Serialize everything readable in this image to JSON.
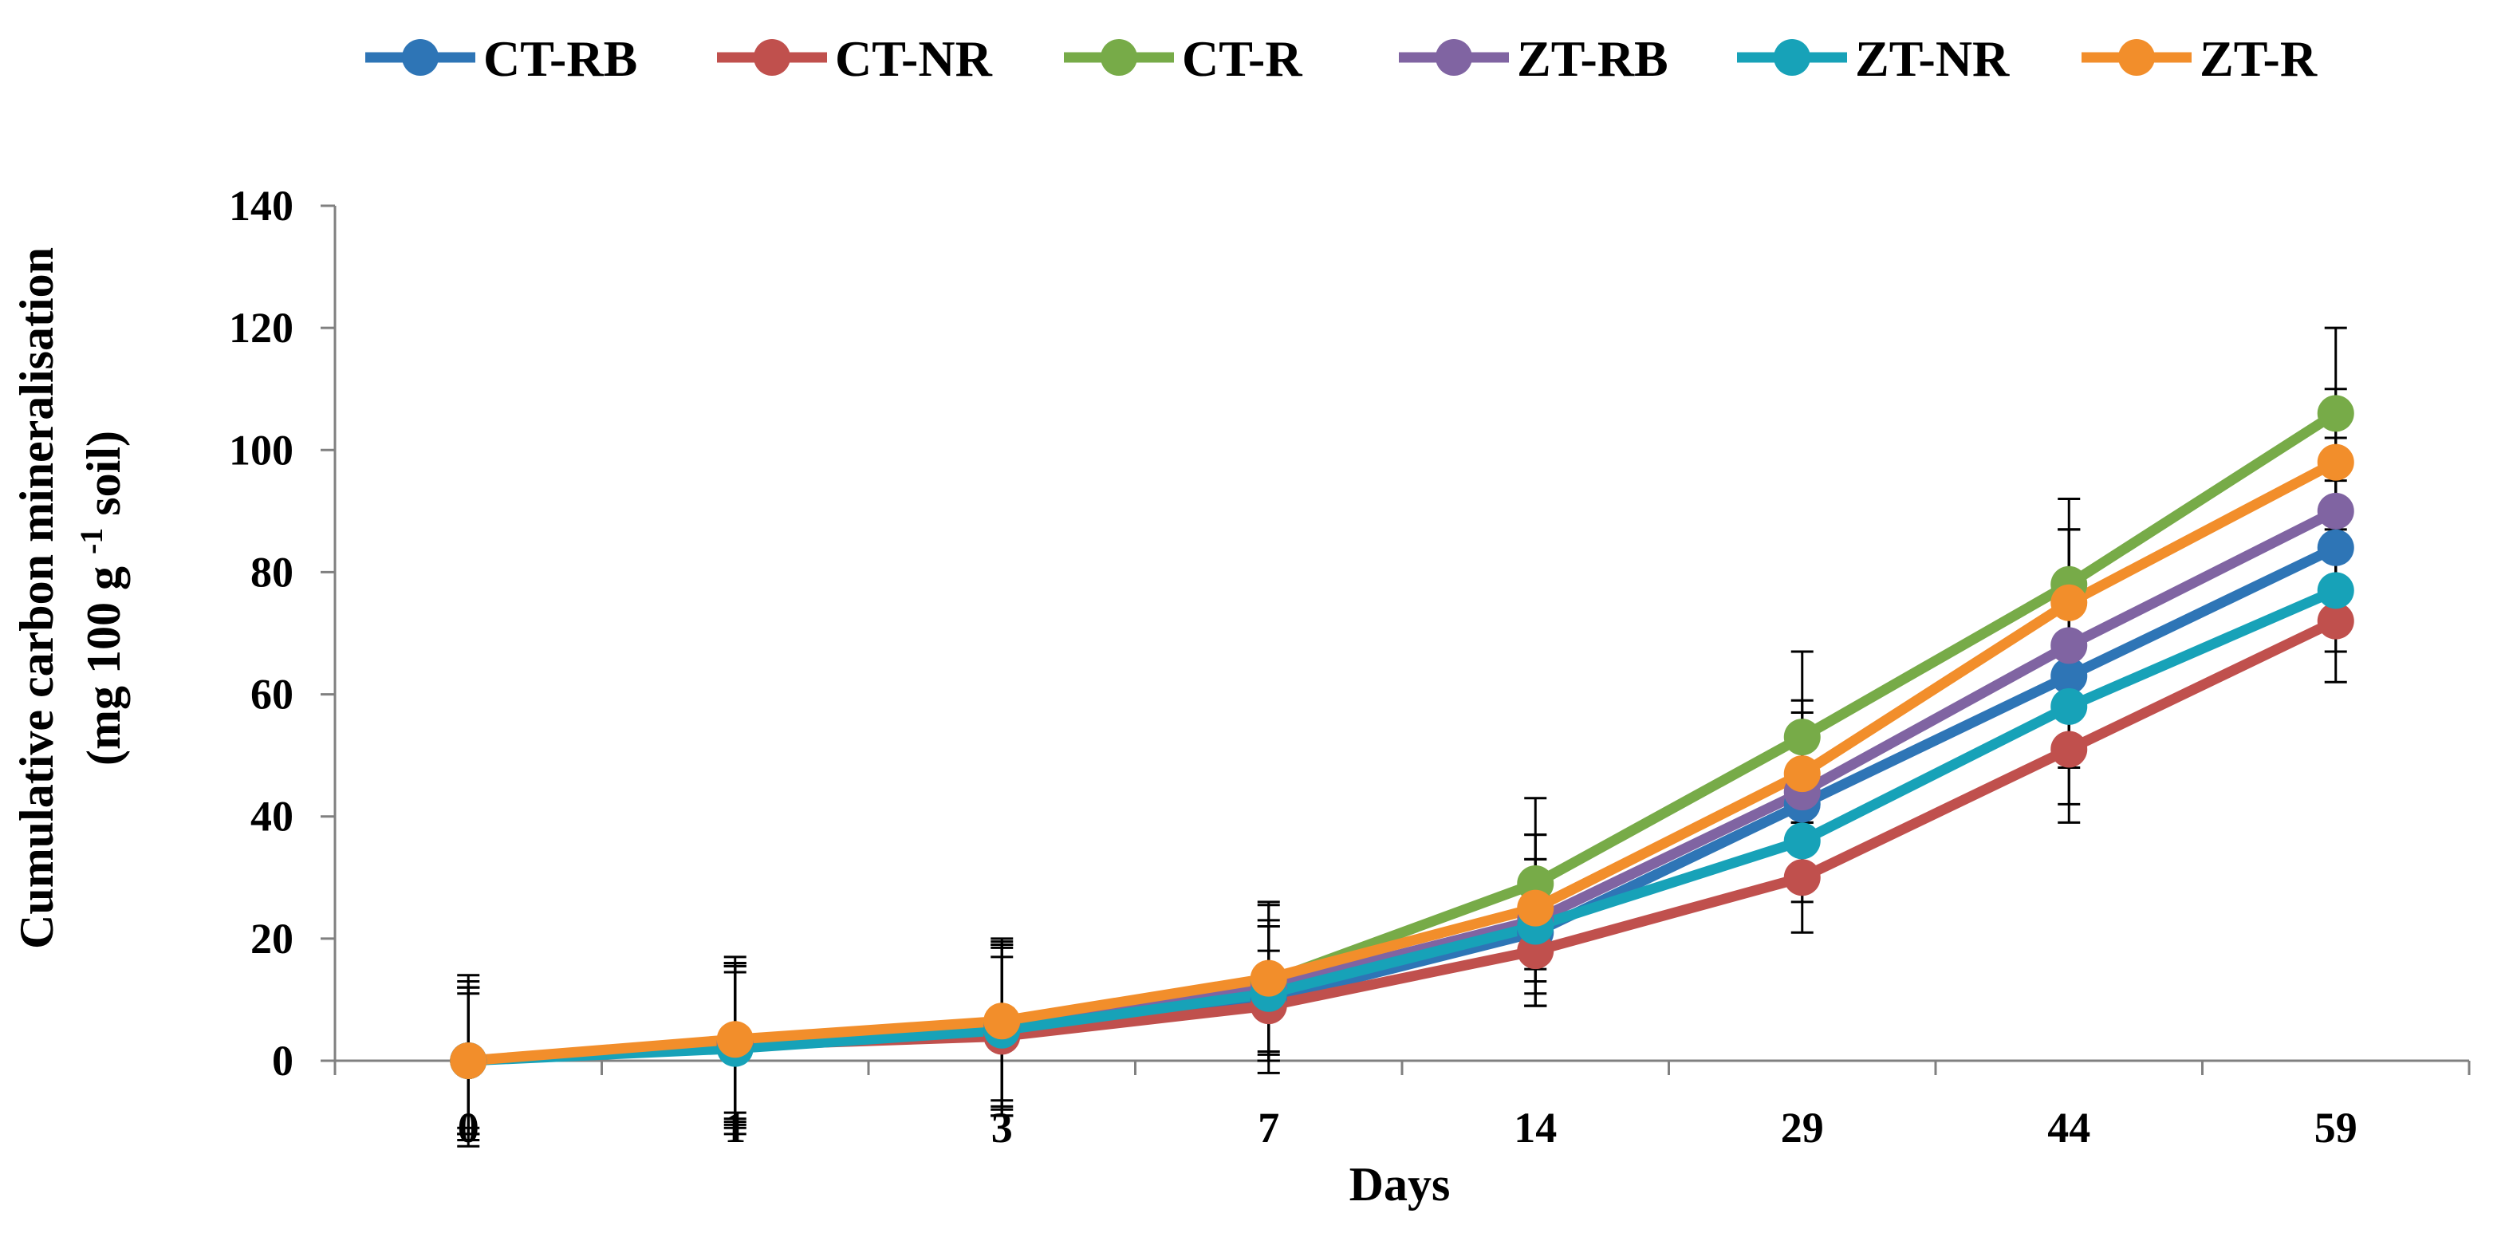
{
  "chart_data": {
    "type": "line",
    "title": "",
    "xlabel": "Days",
    "ylabel_line1": "Cumulative carbon mineralisation",
    "ylabel_line2_pre": "(mg 100 g ",
    "ylabel_line2_sup": "-1",
    "ylabel_line2_post": " soil)",
    "categories": [
      "0",
      "1",
      "3",
      "7",
      "14",
      "29",
      "44",
      "59"
    ],
    "ylim": [
      0,
      140
    ],
    "yticks": [
      "0",
      "20",
      "40",
      "60",
      "80",
      "100",
      "120",
      "140"
    ],
    "grid": false,
    "legend_position": "top",
    "series": [
      {
        "name": "CT-RB",
        "color": "#2E75B6",
        "values": [
          0,
          2.5,
          5,
          10,
          21,
          42,
          63,
          84
        ],
        "errors": [
          12,
          13,
          14,
          12,
          12,
          13,
          24,
          11
        ]
      },
      {
        "name": "CT-NR",
        "color": "#C0504D",
        "values": [
          0,
          2.5,
          4,
          9,
          18,
          30,
          51,
          72
        ],
        "errors": [
          11,
          12,
          13,
          9,
          9,
          9,
          9,
          10
        ]
      },
      {
        "name": "CT-R",
        "color": "#77AB48",
        "values": [
          0,
          3,
          6,
          13,
          29,
          53,
          78,
          106
        ],
        "errors": [
          14,
          14,
          14,
          13,
          14,
          14,
          14,
          14
        ]
      },
      {
        "name": "ZT-RB",
        "color": "#8064A2",
        "values": [
          0,
          3,
          5.5,
          12,
          23,
          44,
          68,
          90
        ],
        "errors": [
          12,
          13,
          13,
          11,
          14,
          13,
          19,
          12
        ]
      },
      {
        "name": "ZT-NR",
        "color": "#17A2B8",
        "values": [
          0,
          2,
          5,
          11,
          22,
          36,
          58,
          77
        ],
        "errors": [
          13,
          14,
          14,
          11,
          11,
          10,
          10,
          10
        ]
      },
      {
        "name": "ZT-R",
        "color": "#F28E2B",
        "values": [
          0,
          3.5,
          6.5,
          13.5,
          25,
          47,
          75,
          98
        ],
        "errors": [
          12,
          12,
          13,
          12,
          12,
          12,
          12,
          12
        ]
      }
    ]
  }
}
